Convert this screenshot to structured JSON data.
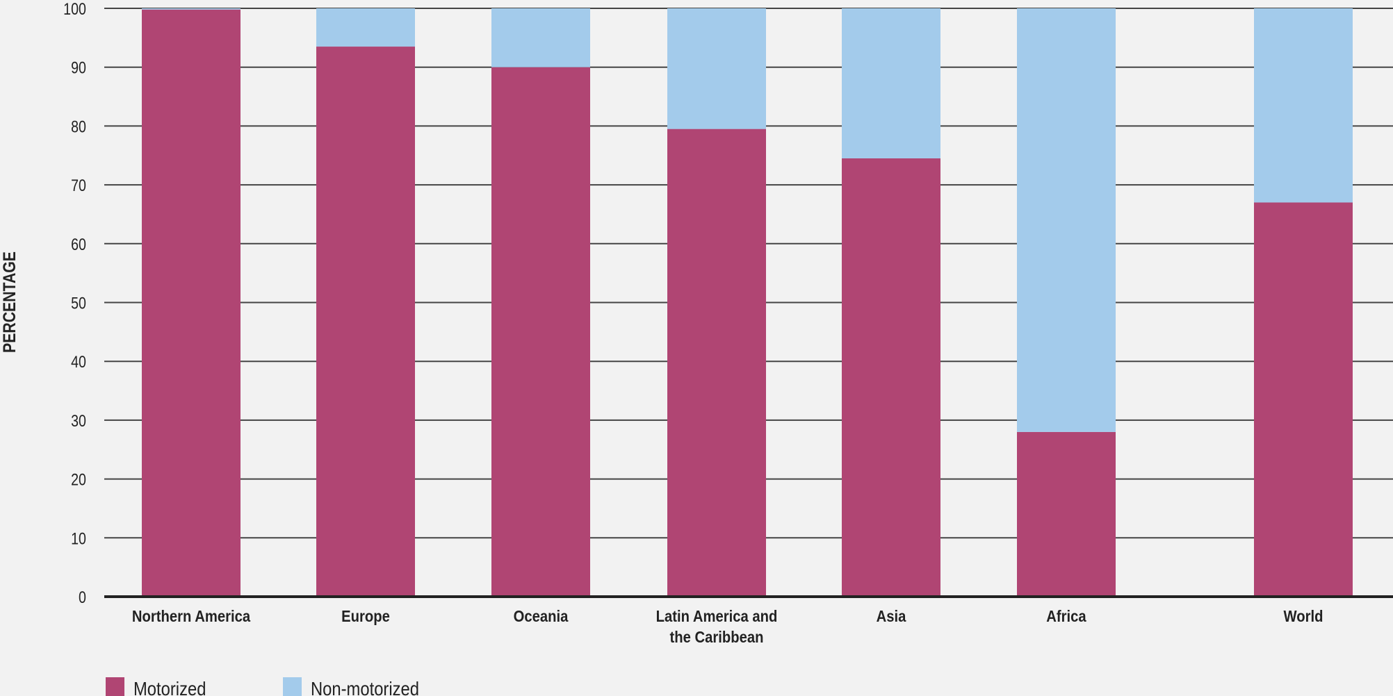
{
  "chart_data": {
    "type": "bar",
    "stacked": true,
    "title": "",
    "xlabel": "",
    "ylabel": "PERCENTAGE",
    "ylim": [
      0,
      100
    ],
    "yticks": [
      0,
      10,
      20,
      30,
      40,
      50,
      60,
      70,
      80,
      90,
      100
    ],
    "grid": true,
    "legend_position": "bottom-left",
    "categories": [
      [
        "Northern America"
      ],
      [
        "Europe"
      ],
      [
        "Oceania"
      ],
      [
        "Latin America and",
        "the Caribbean"
      ],
      [
        "Asia"
      ],
      [
        "Africa"
      ],
      [
        "World"
      ]
    ],
    "series": [
      {
        "name": "Motorized",
        "color": "#b04573",
        "values": [
          99.8,
          93.5,
          90,
          79.5,
          74.5,
          28,
          67
        ]
      },
      {
        "name": "Non-motorized",
        "color": "#a3cbeb",
        "values": [
          0.2,
          6.5,
          10,
          20.5,
          25.5,
          72,
          33
        ]
      }
    ]
  }
}
